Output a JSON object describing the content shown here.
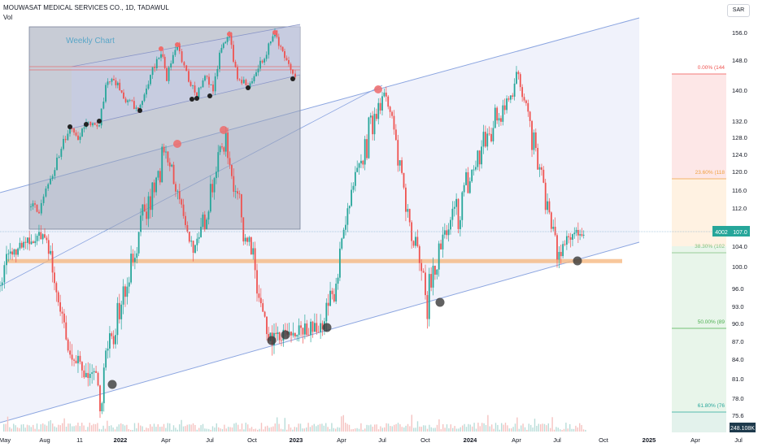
{
  "header": {
    "symbol_line": "MOUWASAT MEDICAL SERVICES CO., 1D, TADAWUL",
    "volume_label": "Vol",
    "currency": "SAR"
  },
  "inset": {
    "title": "Weekly Chart"
  },
  "price_tags": {
    "volume_tag": "4002",
    "last_price": "107.0",
    "volume_total": "248.108K"
  },
  "colors": {
    "up": "#26a69a",
    "down": "#ef5350",
    "channel_fill": "#eef1fb",
    "channel_line": "#8ba5e0",
    "support_band": "#f5b47a",
    "pivot_high": "#ef6b6b",
    "pivot_low": "#3a3a3a"
  },
  "chart_data": {
    "type": "candlestick",
    "y_axis_ticks": [
      "156.0",
      "148.0",
      "140.0",
      "132.0",
      "128.0",
      "124.0",
      "120.0",
      "116.0",
      "112.0",
      "108.0",
      "104.0",
      "100.0",
      "96.0",
      "93.0",
      "90.0",
      "87.0",
      "84.0",
      "81.0",
      "78.0",
      "75.6"
    ],
    "x_axis_ticks": [
      "May",
      "Aug",
      "11",
      "2022",
      "Apr",
      "Jul",
      "Oct",
      "2023",
      "Apr",
      "Jul",
      "Oct",
      "2024",
      "Apr",
      "Jul",
      "Oct",
      "2025",
      "Apr",
      "Jul"
    ],
    "fib_levels": [
      {
        "label": "0.00% (144",
        "fill": "#fde7e7"
      },
      {
        "label": "23.60% (118",
        "fill": "#fff2e2"
      },
      {
        "label": "38.30% (102",
        "fill": "#e8f5ea"
      },
      {
        "label": "50.00% (89",
        "fill": "#e8f5ea"
      },
      {
        "label": "61.80% (76",
        "fill": "#e3f2ec"
      }
    ],
    "support_level": 101.0,
    "last_price": 107.0,
    "swing_points": [
      {
        "date": "2021-05",
        "price": 102
      },
      {
        "date": "2021-08",
        "price": 107
      },
      {
        "date": "2021-10",
        "price": 85
      },
      {
        "date": "2021-12",
        "price": 80
      },
      {
        "date": "2022-04",
        "price": 124
      },
      {
        "date": "2022-06",
        "price": 102
      },
      {
        "date": "2022-08",
        "price": 128
      },
      {
        "date": "2022-11",
        "price": 87
      },
      {
        "date": "2022-12",
        "price": 88
      },
      {
        "date": "2023-03",
        "price": 90
      },
      {
        "date": "2023-07",
        "price": 141
      },
      {
        "date": "2023-10",
        "price": 94
      },
      {
        "date": "2024-04",
        "price": 144
      },
      {
        "date": "2024-07",
        "price": 102
      },
      {
        "date": "2024-08",
        "price": 107
      }
    ]
  }
}
